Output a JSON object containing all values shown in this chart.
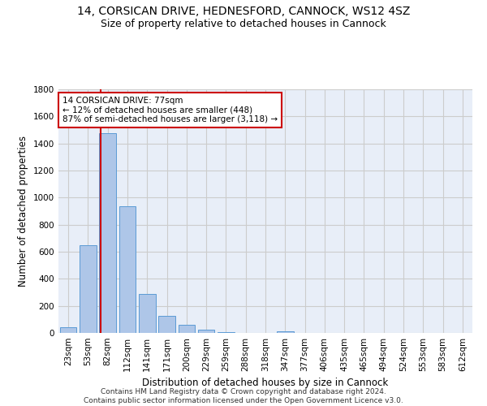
{
  "title_line1": "14, CORSICAN DRIVE, HEDNESFORD, CANNOCK, WS12 4SZ",
  "title_line2": "Size of property relative to detached houses in Cannock",
  "xlabel": "Distribution of detached houses by size in Cannock",
  "ylabel": "Number of detached properties",
  "categories": [
    "23sqm",
    "53sqm",
    "82sqm",
    "112sqm",
    "141sqm",
    "171sqm",
    "200sqm",
    "229sqm",
    "259sqm",
    "288sqm",
    "318sqm",
    "347sqm",
    "377sqm",
    "406sqm",
    "435sqm",
    "465sqm",
    "494sqm",
    "524sqm",
    "553sqm",
    "583sqm",
    "612sqm"
  ],
  "values": [
    40,
    650,
    1475,
    935,
    290,
    128,
    62,
    22,
    8,
    3,
    3,
    14,
    0,
    0,
    0,
    0,
    0,
    0,
    0,
    0,
    0
  ],
  "bar_color": "#aec6e8",
  "bar_edge_color": "#5b9bd5",
  "vline_color": "#cc0000",
  "annotation_text": "14 CORSICAN DRIVE: 77sqm\n← 12% of detached houses are smaller (448)\n87% of semi-detached houses are larger (3,118) →",
  "annotation_box_edgecolor": "#cc0000",
  "annotation_box_facecolor": "white",
  "ylim": [
    0,
    1800
  ],
  "yticks": [
    0,
    200,
    400,
    600,
    800,
    1000,
    1200,
    1400,
    1600,
    1800
  ],
  "grid_color": "#cccccc",
  "background_color": "#e8eef8",
  "footer_text": "Contains HM Land Registry data © Crown copyright and database right 2024.\nContains public sector information licensed under the Open Government Licence v3.0.",
  "title_fontsize": 10,
  "subtitle_fontsize": 9,
  "axis_label_fontsize": 8.5,
  "tick_fontsize": 7.5,
  "footer_fontsize": 6.5
}
